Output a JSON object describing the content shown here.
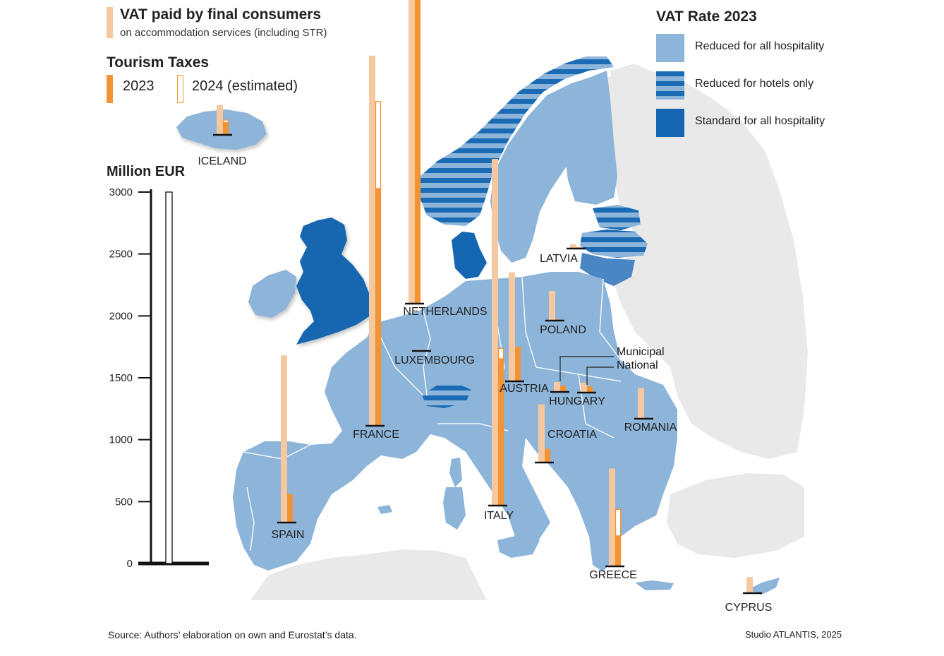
{
  "legend": {
    "vat_title": "VAT paid by final consumers",
    "vat_subtitle": "on accommodation services (including STR)",
    "tourism_title": "Tourism Taxes",
    "tourism_2023": "2023",
    "tourism_2024": "2024 (estimated)",
    "rate_title": "VAT Rate 2023",
    "rate_items": [
      {
        "label": "Reduced for all hospitality",
        "pattern": "solid",
        "color": "#8db4d9"
      },
      {
        "label": "Reduced for hotels only",
        "pattern": "striped",
        "color": "#1a6bb3"
      },
      {
        "label": "Standard for all hospitality",
        "pattern": "solid",
        "color": "#1466b0"
      }
    ]
  },
  "axis": {
    "title": "Million EUR",
    "ticks": [
      "0",
      "500",
      "1000",
      "1500",
      "2000",
      "2500",
      "3000"
    ],
    "ylim": [
      0,
      3000
    ]
  },
  "colors": {
    "vat": "#f6c8a0",
    "tourism": "#f29433",
    "reduced": "#8db4d9",
    "standard": "#1466b0",
    "stripe_light": "#8db4d9",
    "nonEU": "#e9e9e9",
    "sea": "#ffffff"
  },
  "annotations": {
    "municipal": "Municipal",
    "national": "National"
  },
  "chart_data": {
    "type": "bar",
    "ylim": [
      0,
      3000
    ],
    "ylabel": "Million EUR",
    "countries": [
      {
        "name": "ICELAND",
        "vat": 70,
        "tax2023": 30,
        "tax2024": 35
      },
      {
        "name": "FRANCE",
        "vat": 2990,
        "tax2023": 1920,
        "tax2024": 2620
      },
      {
        "name": "NETHERLANDS",
        "vat": 2760,
        "tax2023": 2550,
        "tax2024": 2640
      },
      {
        "name": "LUXEMBOURG",
        "vat": 10,
        "tax2023": 5,
        "tax2024": 0
      },
      {
        "name": "LATVIA",
        "vat": 35,
        "tax2023": 10,
        "tax2024": 0
      },
      {
        "name": "POLAND",
        "vat": 240,
        "tax2023": 10,
        "tax2024": 0
      },
      {
        "name": "ITALY",
        "vat": 2800,
        "tax2023": 1190,
        "tax2024": 1270
      },
      {
        "name": "AUSTRIA",
        "vat": 880,
        "tax2023": 280,
        "tax2024": 0
      },
      {
        "name": "HUNGARY (Municipal)",
        "vat": 80,
        "tax2023": 50,
        "tax2024": 0
      },
      {
        "name": "HUNGARY (National)",
        "vat": 80,
        "tax2023": 50,
        "tax2024": 0
      },
      {
        "name": "ROMANIA",
        "vat": 250,
        "tax2023": 0,
        "tax2024": 0
      },
      {
        "name": "CROATIA",
        "vat": 470,
        "tax2023": 110,
        "tax2024": 0
      },
      {
        "name": "SPAIN",
        "vat": 1350,
        "tax2023": 230,
        "tax2024": 0
      },
      {
        "name": "GREECE",
        "vat": 790,
        "tax2023": 250,
        "tax2024": 460
      },
      {
        "name": "CYPRUS",
        "vat": 130,
        "tax2023": 0,
        "tax2024": 0
      }
    ]
  },
  "footer": {
    "source": "Source: Authors’ elaboration on own and Eurostat’s data.",
    "credit": "Studio ATLANTIS, 2025"
  }
}
